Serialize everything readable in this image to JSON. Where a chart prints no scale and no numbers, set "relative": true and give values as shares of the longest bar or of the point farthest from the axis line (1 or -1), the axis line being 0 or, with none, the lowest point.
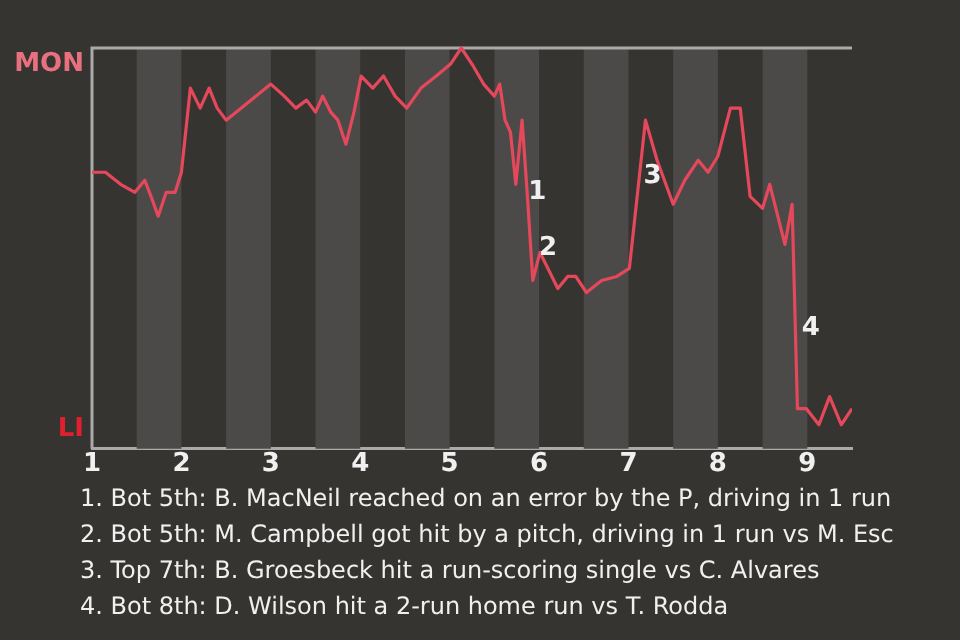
{
  "chart_data": {
    "type": "line",
    "relative": true,
    "x": [
      1,
      1.15,
      1.32,
      1.48,
      1.59,
      1.66,
      1.74,
      1.83,
      1.93,
      2,
      2.1,
      2.21,
      2.31,
      2.4,
      2.5,
      2.67,
      3,
      3.15,
      3.28,
      3.4,
      3.5,
      3.58,
      3.67,
      3.75,
      3.84,
      3.93,
      4.01,
      4.14,
      4.26,
      4.39,
      4.52,
      4.68,
      4.85,
      5.01,
      5.13,
      5.25,
      5.38,
      5.5,
      5.56,
      5.62,
      5.68,
      5.74,
      5.81,
      5.87,
      5.93,
      6.01,
      6.21,
      6.32,
      6.41,
      6.53,
      6.7,
      6.87,
      7.01,
      7.19,
      7.32,
      7.5,
      7.63,
      7.78,
      7.89,
      8,
      8.14,
      8.25,
      8.36,
      8.5,
      8.58,
      8.75,
      8.83,
      8.89,
      8.99,
      9.13,
      9.25,
      9.38,
      9.5
    ],
    "series": [
      {
        "color": "#e5485a",
        "values": [
          0.69,
          0.69,
          0.66,
          0.64,
          0.67,
          0.63,
          0.58,
          0.64,
          0.64,
          0.69,
          0.9,
          0.85,
          0.9,
          0.85,
          0.82,
          0.85,
          0.91,
          0.88,
          0.85,
          0.87,
          0.84,
          0.88,
          0.84,
          0.82,
          0.76,
          0.84,
          0.93,
          0.9,
          0.93,
          0.88,
          0.85,
          0.9,
          0.93,
          0.96,
          1,
          0.96,
          0.91,
          0.88,
          0.91,
          0.82,
          0.79,
          0.66,
          0.82,
          0.63,
          0.42,
          0.49,
          0.4,
          0.43,
          0.43,
          0.39,
          0.42,
          0.43,
          0.45,
          0.82,
          0.72,
          0.61,
          0.67,
          0.72,
          0.69,
          0.73,
          0.85,
          0.85,
          0.63,
          0.6,
          0.66,
          0.51,
          0.61,
          0.1,
          0.1,
          0.06,
          0.13,
          0.06,
          0.1
        ]
      }
    ],
    "xlim": [
      1,
      9.5
    ],
    "xticks": [
      1,
      2,
      3,
      4,
      5,
      6,
      7,
      8,
      9
    ],
    "legend": false,
    "marker": "none",
    "line_style": "solid",
    "bands": [
      {
        "axis": "x",
        "from": 1.5,
        "to": 2,
        "color": "#4b4a48"
      },
      {
        "axis": "x",
        "from": 2.5,
        "to": 3,
        "color": "#4b4a48"
      },
      {
        "axis": "x",
        "from": 3.5,
        "to": 4,
        "color": "#4b4a48"
      },
      {
        "axis": "x",
        "from": 4.5,
        "to": 5,
        "color": "#4b4a48"
      },
      {
        "axis": "x",
        "from": 5.5,
        "to": 6,
        "color": "#4b4a48"
      },
      {
        "axis": "x",
        "from": 6.5,
        "to": 7,
        "color": "#4b4a48"
      },
      {
        "axis": "x",
        "from": 7.5,
        "to": 8,
        "color": "#4b4a48"
      },
      {
        "axis": "x",
        "from": 8.5,
        "to": 9,
        "color": "#4b4a48"
      }
    ],
    "annotations": [
      "MON",
      "LI",
      {
        "text": "1",
        "x": 5.98,
        "y": 0.64
      },
      {
        "text": "2",
        "x": 6.1,
        "y": 0.5
      },
      {
        "text": "3",
        "x": 7.27,
        "y": 0.68
      },
      {
        "text": "4",
        "x": 9.04,
        "y": 0.3
      },
      "1. Bot 5th: B. MacNeil reached on an error by the P, driving in 1 run",
      "2. Bot 5th: M. Campbell got hit by a pitch, driving in 1 run vs M. Esc",
      "3. Top 7th: B. Groesbeck hit a run-scoring single vs C. Alvares",
      "4. Bot 8th: D. Wilson hit a 2-run home run vs T. Rodda"
    ]
  }
}
